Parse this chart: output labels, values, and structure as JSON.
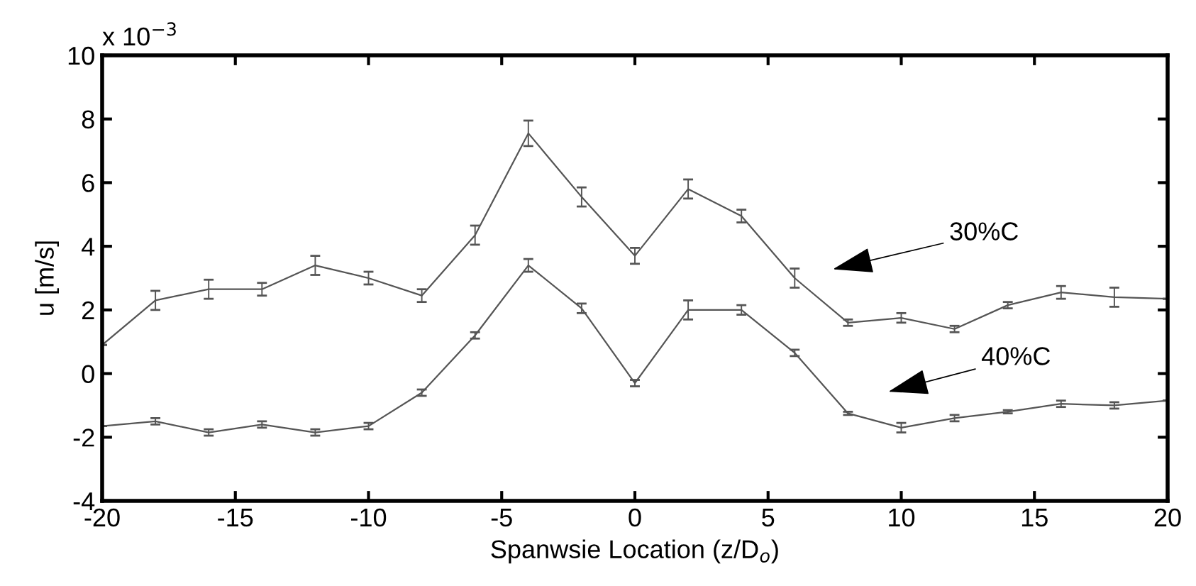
{
  "chart_data": {
    "type": "line",
    "xlabel": "Spanwsie Location (z/D$_{o}$)",
    "ylabel": "u [m/s]",
    "x": [
      -20,
      -18,
      -16,
      -14,
      -12,
      -10,
      -8,
      -6,
      -4,
      -2,
      0,
      2,
      4,
      6,
      8,
      10,
      12,
      14,
      16,
      18,
      20
    ],
    "series": [
      {
        "color": "#555555",
        "values": [
          0.9,
          2.3,
          2.65,
          2.65,
          3.4,
          3.0,
          2.45,
          4.35,
          7.55,
          5.55,
          3.7,
          5.8,
          4.95,
          3.0,
          1.6,
          1.75,
          1.4,
          2.15,
          2.55,
          2.4,
          2.35
        ],
        "errors": [
          null,
          0.3,
          0.3,
          0.2,
          0.3,
          0.2,
          0.2,
          0.3,
          0.4,
          0.3,
          0.25,
          0.3,
          0.2,
          0.3,
          0.1,
          0.15,
          0.1,
          0.1,
          0.2,
          0.3,
          null
        ]
      },
      {
        "color": "#555555",
        "values": [
          -1.65,
          -1.5,
          -1.85,
          -1.6,
          -1.85,
          -1.65,
          -0.6,
          1.2,
          3.4,
          2.05,
          -0.3,
          2.0,
          2.0,
          0.65,
          -1.25,
          -1.7,
          -1.4,
          -1.2,
          -0.95,
          -1.0,
          -0.85
        ],
        "errors": [
          null,
          0.1,
          0.1,
          0.1,
          0.1,
          0.1,
          0.1,
          0.1,
          0.2,
          0.15,
          0.1,
          0.3,
          0.15,
          0.1,
          0.05,
          0.15,
          0.1,
          0.05,
          0.1,
          0.1,
          null
        ]
      }
    ],
    "annotations": [
      "x 10$^{−3}$",
      "30%C",
      "40%C"
    ],
    "xlim": [
      -20,
      20
    ],
    "ylim": [
      -4,
      10
    ],
    "xticks": [
      -20,
      -15,
      -10,
      -5,
      0,
      5,
      10,
      15,
      20
    ],
    "yticks": [
      -4,
      -2,
      0,
      2,
      4,
      6,
      8,
      10
    ],
    "grid": false,
    "marker": "none",
    "line_style": "solid"
  }
}
